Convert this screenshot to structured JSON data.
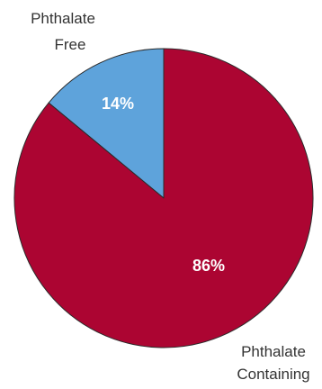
{
  "chart_data": {
    "type": "pie",
    "title": "",
    "slices": [
      {
        "label_lines": [
          "Phthalate",
          "Free"
        ],
        "value": 14,
        "value_label": "14%",
        "color": "#5ea3db"
      },
      {
        "label_lines": [
          "Phthalate",
          "Containing"
        ],
        "value": 86,
        "value_label": "86%",
        "color": "#ac0532"
      }
    ],
    "start_angle_deg": 0,
    "direction": "counterclockwise",
    "slice_border_color": "#2b2b2b"
  }
}
